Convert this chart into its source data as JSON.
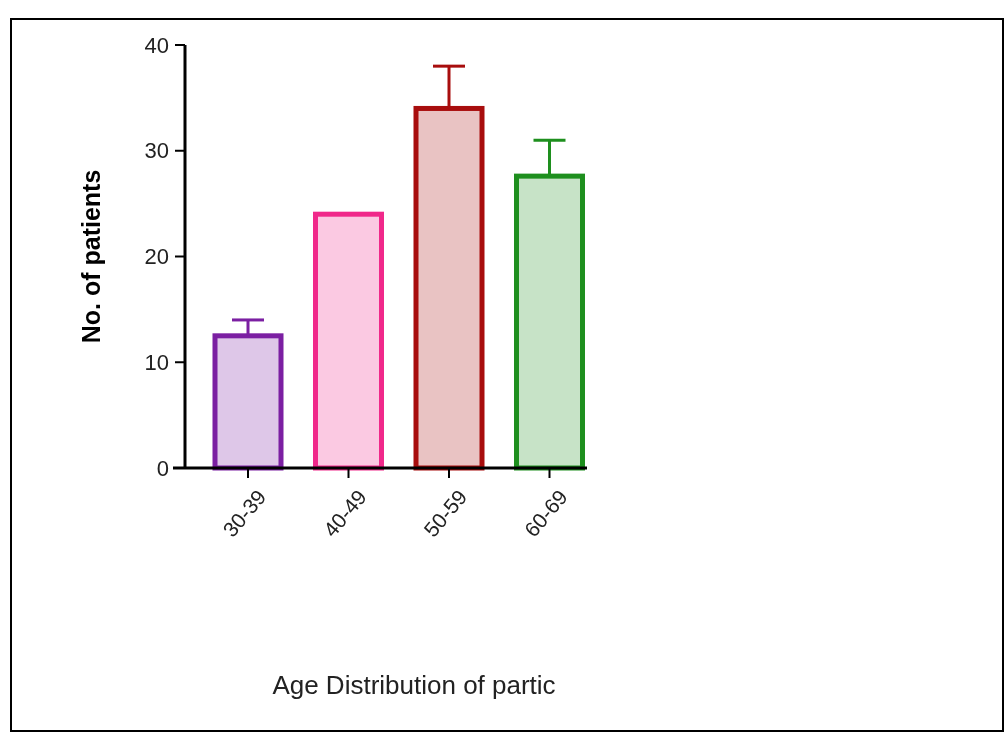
{
  "chart_data": {
    "type": "bar",
    "xlabel": "Age Distribution of partic",
    "ylabel": "No. of patients",
    "categories": [
      "30-39",
      "40-49",
      "50-59",
      "60-69"
    ],
    "values": [
      12.5,
      24,
      34,
      27.6
    ],
    "errors": [
      [
        12.5,
        14
      ],
      null,
      [
        34,
        38
      ],
      [
        27.6,
        31
      ]
    ],
    "colors": [
      "#7b1fa2",
      "#f0288a",
      "#a80d0d",
      "#1e8f1e"
    ],
    "ylim": [
      0,
      40
    ],
    "yticks": [
      0,
      10,
      20,
      30,
      40
    ],
    "grid": false
  }
}
